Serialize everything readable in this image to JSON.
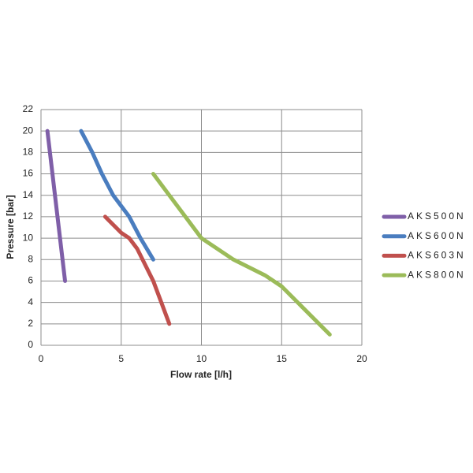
{
  "chart_data": {
    "type": "line",
    "x_label": "Flow rate [l/h]",
    "y_label": "Pressure [bar]",
    "xlim": [
      0,
      20
    ],
    "xticks": [
      0,
      5,
      10,
      15,
      20
    ],
    "ylim": [
      0,
      22
    ],
    "yticks": [
      0,
      2,
      4,
      6,
      8,
      10,
      12,
      14,
      16,
      18,
      20,
      22
    ],
    "grid": true,
    "legend": "right",
    "series": [
      {
        "name": "AKS500N",
        "color": "#7f5fa8",
        "x": [
          0.4,
          1.5
        ],
        "values": [
          20,
          6
        ]
      },
      {
        "name": "AKS600N",
        "color": "#4a7dbf",
        "x": [
          2.5,
          3.2,
          3.8,
          4.5,
          5.5,
          6.2,
          7
        ],
        "values": [
          20,
          18,
          16,
          14,
          12,
          10,
          8
        ]
      },
      {
        "name": "AKS603N",
        "color": "#c0504d",
        "x": [
          4,
          5,
          5.5,
          6,
          7,
          8
        ],
        "values": [
          12,
          10.5,
          10,
          9,
          6,
          2
        ]
      },
      {
        "name": "AKS800N",
        "color": "#9bbb59",
        "x": [
          7,
          8,
          9,
          10,
          12,
          14,
          15,
          16,
          18
        ],
        "values": [
          16,
          14,
          12,
          10,
          8,
          6.5,
          5.5,
          4,
          1
        ]
      }
    ]
  }
}
